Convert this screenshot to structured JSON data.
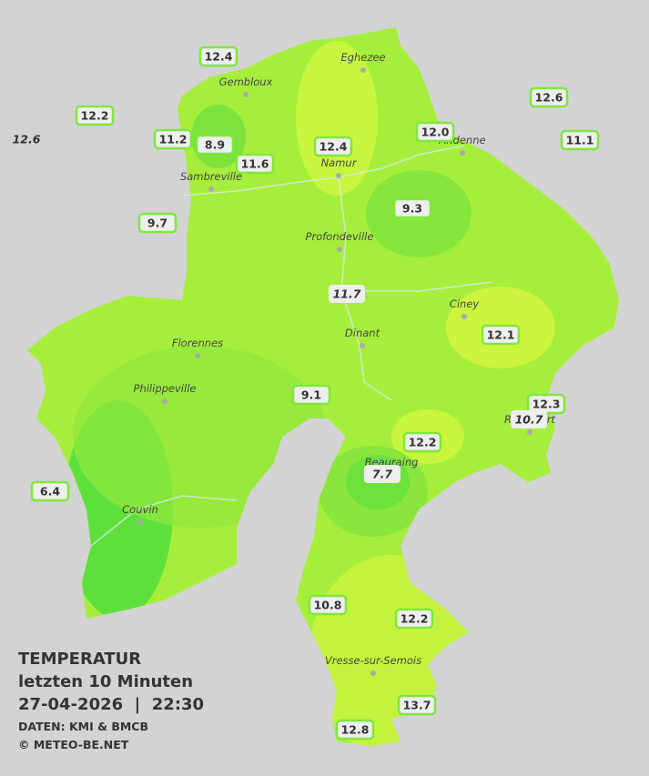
{
  "legend": {
    "title": "TEMPERATUR",
    "subtitle": "letzten 10 Minuten",
    "datetime": "27-04-2026  |  22:30",
    "source": "DATEN: KMI & BMCB",
    "copyright": "© METEO-BE.NET"
  },
  "towns": [
    "Eghezee",
    "Gembloux",
    "Andenne",
    "Namur",
    "Sambreville",
    "Profondeville",
    "Ciney",
    "Dinant",
    "Florennes",
    "Philippeville",
    "Rochefort",
    "Beauraing",
    "Couvin",
    "Vresse-sur-Semois"
  ],
  "stations": [
    {
      "label": "12.4"
    },
    {
      "label": "12.2"
    },
    {
      "label": "12.6",
      "italic": true
    },
    {
      "label": "11.2"
    },
    {
      "label": "8.9"
    },
    {
      "label": "11.6"
    },
    {
      "label": "12.4"
    },
    {
      "label": "12.0"
    },
    {
      "label": "12.6"
    },
    {
      "label": "11.1"
    },
    {
      "label": "9.7"
    },
    {
      "label": "9.3"
    },
    {
      "label": "11.7",
      "italic": true
    },
    {
      "label": "12.1"
    },
    {
      "label": "9.1"
    },
    {
      "label": "12.3"
    },
    {
      "label": "10.7",
      "italic": true
    },
    {
      "label": "12.2"
    },
    {
      "label": "7.7",
      "italic": true
    },
    {
      "label": "6.4"
    },
    {
      "label": "10.8"
    },
    {
      "label": "12.2"
    },
    {
      "label": "13.7"
    },
    {
      "label": "12.8"
    }
  ]
}
